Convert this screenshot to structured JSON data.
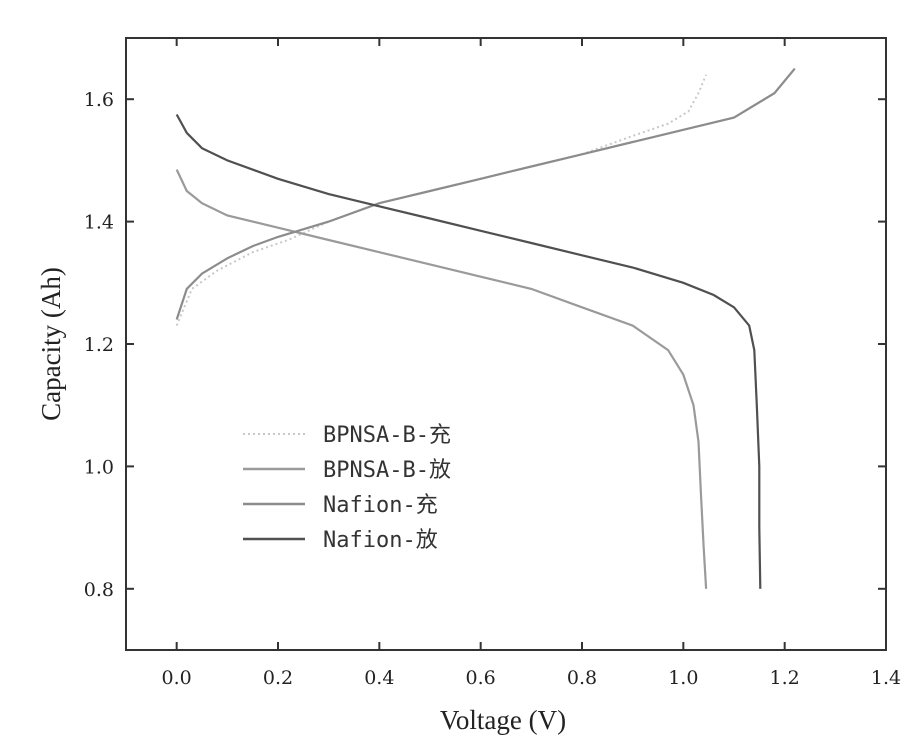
{
  "chart_data": {
    "type": "line",
    "xlabel": "Voltage (V)",
    "ylabel": "Capacity (Ah)",
    "xlim": [
      -0.1,
      1.4
    ],
    "ylim": [
      0.7,
      1.7
    ],
    "x_ticks": [
      "0.0",
      "0.2",
      "0.4",
      "0.6",
      "0.8",
      "1.0",
      "1.2",
      "1.4"
    ],
    "y_ticks": [
      "0.8",
      "1.0",
      "1.2",
      "1.4",
      "1.6"
    ],
    "grid": false,
    "legend_position": "lower-left",
    "series": [
      {
        "name": "BPNSA-B-充",
        "color": "#c8c8c8",
        "style": "dotted",
        "points": [
          [
            0.0,
            1.23
          ],
          [
            0.03,
            1.29
          ],
          [
            0.08,
            1.32
          ],
          [
            0.15,
            1.35
          ],
          [
            0.22,
            1.37
          ],
          [
            0.3,
            1.4
          ],
          [
            0.4,
            1.43
          ],
          [
            0.5,
            1.45
          ],
          [
            0.6,
            1.47
          ],
          [
            0.7,
            1.49
          ],
          [
            0.8,
            1.51
          ],
          [
            0.9,
            1.54
          ],
          [
            0.97,
            1.56
          ],
          [
            1.01,
            1.58
          ],
          [
            1.03,
            1.61
          ],
          [
            1.045,
            1.64
          ]
        ]
      },
      {
        "name": "BPNSA-B-放",
        "color": "#9a9a9a",
        "style": "solid",
        "points": [
          [
            0.0,
            1.485
          ],
          [
            0.02,
            1.45
          ],
          [
            0.05,
            1.43
          ],
          [
            0.1,
            1.41
          ],
          [
            0.2,
            1.39
          ],
          [
            0.3,
            1.37
          ],
          [
            0.4,
            1.35
          ],
          [
            0.5,
            1.33
          ],
          [
            0.6,
            1.31
          ],
          [
            0.7,
            1.29
          ],
          [
            0.8,
            1.26
          ],
          [
            0.9,
            1.23
          ],
          [
            0.97,
            1.19
          ],
          [
            1.0,
            1.15
          ],
          [
            1.02,
            1.1
          ],
          [
            1.03,
            1.04
          ],
          [
            1.035,
            0.95
          ],
          [
            1.04,
            0.87
          ],
          [
            1.045,
            0.8
          ]
        ]
      },
      {
        "name": "Nafion-充",
        "color": "#8c8c8c",
        "style": "solid",
        "points": [
          [
            0.0,
            1.24
          ],
          [
            0.02,
            1.29
          ],
          [
            0.05,
            1.315
          ],
          [
            0.1,
            1.34
          ],
          [
            0.15,
            1.36
          ],
          [
            0.2,
            1.375
          ],
          [
            0.3,
            1.4
          ],
          [
            0.4,
            1.43
          ],
          [
            0.5,
            1.45
          ],
          [
            0.6,
            1.47
          ],
          [
            0.7,
            1.49
          ],
          [
            0.8,
            1.51
          ],
          [
            0.9,
            1.53
          ],
          [
            1.0,
            1.55
          ],
          [
            1.1,
            1.57
          ],
          [
            1.18,
            1.61
          ],
          [
            1.22,
            1.65
          ]
        ]
      },
      {
        "name": "Nafion-放",
        "color": "#505050",
        "style": "solid",
        "points": [
          [
            0.0,
            1.575
          ],
          [
            0.02,
            1.545
          ],
          [
            0.05,
            1.52
          ],
          [
            0.1,
            1.5
          ],
          [
            0.2,
            1.47
          ],
          [
            0.3,
            1.445
          ],
          [
            0.4,
            1.425
          ],
          [
            0.5,
            1.405
          ],
          [
            0.6,
            1.385
          ],
          [
            0.7,
            1.365
          ],
          [
            0.8,
            1.345
          ],
          [
            0.9,
            1.325
          ],
          [
            1.0,
            1.3
          ],
          [
            1.06,
            1.28
          ],
          [
            1.1,
            1.26
          ],
          [
            1.13,
            1.23
          ],
          [
            1.14,
            1.19
          ],
          [
            1.145,
            1.1
          ],
          [
            1.15,
            1.0
          ],
          [
            1.15,
            0.9
          ],
          [
            1.152,
            0.8
          ]
        ]
      }
    ]
  }
}
